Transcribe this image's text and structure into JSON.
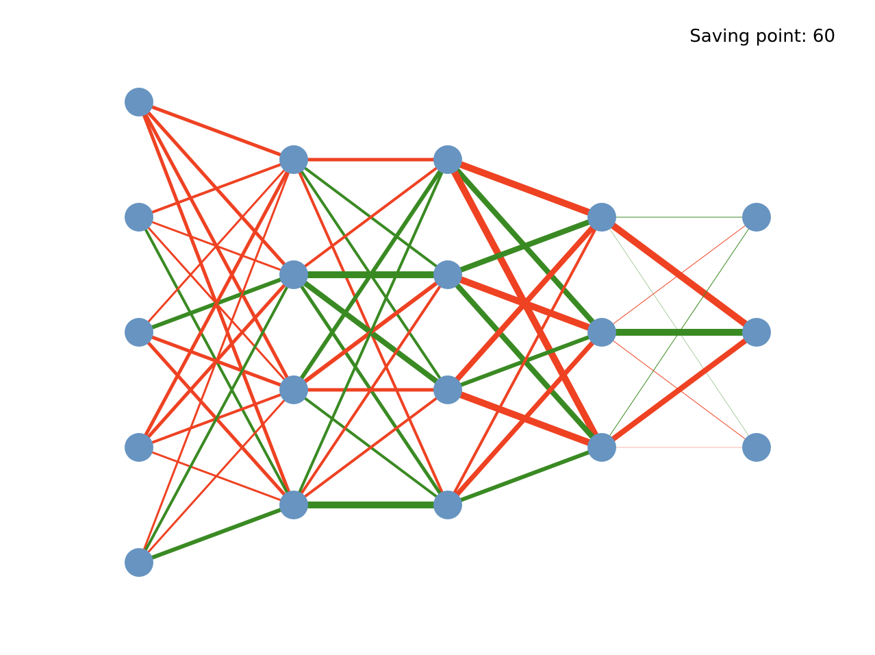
{
  "header": {
    "saving_label": "Saving point: 60"
  },
  "colors": {
    "node": "#6794c1",
    "positive": "#3a8a23",
    "negative": "#ee4223",
    "background": "#ffffff"
  },
  "network": {
    "layer_sizes": [
      5,
      4,
      4,
      3,
      3
    ],
    "weights": [
      [
        [
          "r",
          5
        ],
        [
          "r",
          5
        ],
        [
          "r",
          5
        ],
        [
          "r",
          5
        ],
        [
          "r",
          4
        ],
        [
          "r",
          3
        ],
        [
          "r",
          3
        ],
        [
          "g",
          4
        ],
        [
          "r",
          3
        ],
        [
          "g",
          6
        ]
      ],
      [
        [
          "r",
          5
        ],
        [
          "g",
          4
        ],
        [
          "g",
          4
        ],
        [
          "r",
          4
        ],
        [
          "r",
          4
        ],
        [
          "g",
          10
        ],
        [
          "g",
          8
        ],
        [
          "g",
          5
        ],
        [
          "g",
          6
        ],
        [
          "r",
          6
        ]
      ],
      [
        [
          "r",
          10
        ],
        [
          "g",
          8
        ],
        [
          "r",
          10
        ],
        [
          "g",
          8
        ],
        [
          "r",
          10
        ],
        [
          "g",
          8
        ],
        [
          "r",
          8
        ],
        [
          "g",
          6
        ],
        [
          "r",
          10
        ],
        [
          "r",
          4
        ],
        [
          "r",
          7
        ],
        [
          "g",
          6
        ],
        [
          "g",
          8
        ],
        [
          "g",
          4
        ],
        [
          "g",
          8
        ],
        [
          "r",
          9
        ]
      ],
      [
        [
          "g",
          1
        ],
        [
          "r",
          10
        ],
        [
          "g",
          0.5
        ],
        [
          "r",
          1
        ],
        [
          "g",
          10
        ],
        [
          "r",
          1
        ],
        [
          "g",
          1
        ],
        [
          "r",
          8
        ],
        [
          "r",
          0.4
        ],
        [
          "g",
          0.4
        ],
        [
          "g",
          12
        ],
        [
          "r",
          1.5
        ]
      ],
      [
        [
          "g",
          2
        ],
        [
          "r",
          7
        ],
        [
          "g",
          2
        ],
        [
          "g",
          0.5
        ],
        [
          "r",
          7
        ],
        [
          "g",
          0.3
        ],
        [
          "g",
          1.5
        ],
        [
          "r",
          7
        ],
        [
          "g",
          2
        ]
      ]
    ]
  }
}
